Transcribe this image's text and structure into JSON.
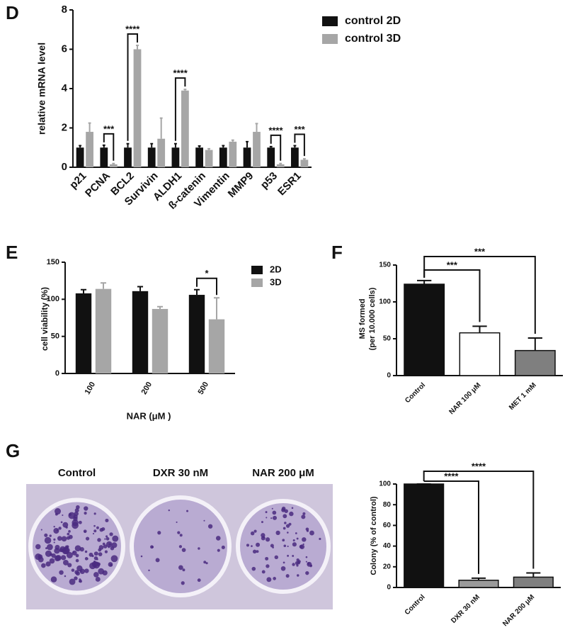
{
  "chart_data": [
    {
      "type": "bar",
      "panel_label": "D",
      "y_label": "relative mRNA level",
      "categories": [
        "p21",
        "PCNA",
        "BCL2",
        "Survivin",
        "ALDH1",
        "ß-catenin",
        "Vimentin",
        "MMP9",
        "p53",
        "ESR1"
      ],
      "series": [
        {
          "name": "control 2D",
          "color": "#111111",
          "values": [
            1,
            1,
            1,
            1,
            1,
            1,
            1,
            1,
            1,
            1
          ],
          "errors": [
            0.1,
            0.12,
            0.2,
            0.2,
            0.2,
            0.08,
            0.1,
            0.3,
            0.05,
            0.1
          ]
        },
        {
          "name": "control 3D",
          "color": "#a6a6a6",
          "values": [
            1.8,
            0.15,
            6.0,
            1.45,
            3.9,
            0.88,
            1.3,
            1.8,
            0.15,
            0.38
          ],
          "errors": [
            0.45,
            0.04,
            0.2,
            1.05,
            0.06,
            0.06,
            0.08,
            0.42,
            0.04,
            0.05
          ]
        }
      ],
      "significance": [
        null,
        "***",
        "****",
        null,
        "****",
        null,
        null,
        null,
        "****",
        "***"
      ],
      "ylim": [
        0,
        8
      ],
      "yticks": [
        0,
        2,
        4,
        6,
        8
      ]
    },
    {
      "type": "bar",
      "panel_label": "E",
      "x_label": "NAR (μM )",
      "y_label": "cell viability (%)",
      "categories": [
        "100",
        "200",
        "500"
      ],
      "series": [
        {
          "name": "2D",
          "color": "#111111",
          "values": [
            108,
            111,
            106
          ],
          "errors": [
            5,
            6,
            7
          ]
        },
        {
          "name": "3D",
          "color": "#a6a6a6",
          "values": [
            114,
            87,
            73
          ],
          "errors": [
            8,
            3,
            29
          ]
        }
      ],
      "significance": [
        null,
        null,
        "*"
      ],
      "ylim": [
        0,
        150
      ],
      "yticks": [
        0,
        50,
        100,
        150
      ]
    },
    {
      "type": "bar",
      "panel_label": "F",
      "y_label": [
        "MS formed",
        "(per 10.000 cells)"
      ],
      "categories": [
        "Control",
        "NAR 100 μM",
        "MET 1 mM"
      ],
      "values": [
        124,
        58,
        34
      ],
      "errors": [
        5,
        9,
        17
      ],
      "colors": [
        "#111111",
        "#ffffff",
        "#7f7f7f"
      ],
      "significance": [
        null,
        "***",
        "***"
      ],
      "ylim": [
        0,
        150
      ],
      "yticks": [
        0,
        50,
        100,
        150
      ]
    },
    {
      "type": "bar",
      "panel_label": "G",
      "y_label": "Colony (% of control)",
      "image_titles": [
        "Control",
        "DXR 30 nM",
        "NAR 200 μM"
      ],
      "categories": [
        "Control",
        "DXR 30 nM",
        "NAR 200 μM"
      ],
      "values": [
        100,
        7,
        10
      ],
      "errors": [
        0,
        2,
        4
      ],
      "colors": [
        "#111111",
        "#9a9a9a",
        "#7f7f7f"
      ],
      "significance": [
        null,
        "****",
        "****"
      ],
      "ylim": [
        0,
        100
      ],
      "yticks": [
        0,
        20,
        40,
        60,
        80,
        100
      ]
    }
  ]
}
